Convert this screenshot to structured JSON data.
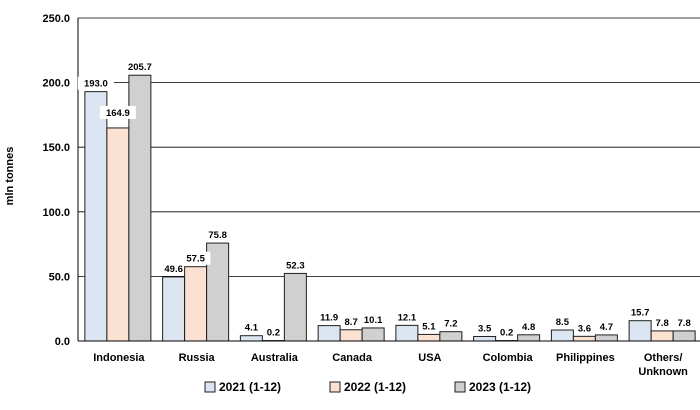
{
  "chart_data": {
    "type": "bar",
    "ylabel": "mln tonnes",
    "ylim": [
      0,
      250
    ],
    "yticks": [
      "0.0",
      "50.0",
      "100.0",
      "150.0",
      "200.0",
      "250.0"
    ],
    "grid": true,
    "legend_position": "bottom",
    "categories": [
      "Indonesia",
      "Russia",
      "Australia",
      "Canada",
      "USA",
      "Colombia",
      "Philippines",
      "Others/\nUnknown"
    ],
    "series": [
      {
        "name": "2021 (1-12)",
        "color": "#dce6f2",
        "values": [
          193.0,
          49.6,
          4.1,
          11.9,
          12.1,
          3.5,
          8.5,
          15.7
        ]
      },
      {
        "name": "2022 (1-12)",
        "color": "#fbe1d2",
        "values": [
          164.9,
          57.5,
          0.2,
          8.7,
          5.1,
          0.2,
          3.6,
          7.8
        ]
      },
      {
        "name": "2023 (1-12)",
        "color": "#d0d0d0",
        "values": [
          205.7,
          75.8,
          52.3,
          10.1,
          7.2,
          4.8,
          4.7,
          7.8
        ]
      }
    ]
  }
}
